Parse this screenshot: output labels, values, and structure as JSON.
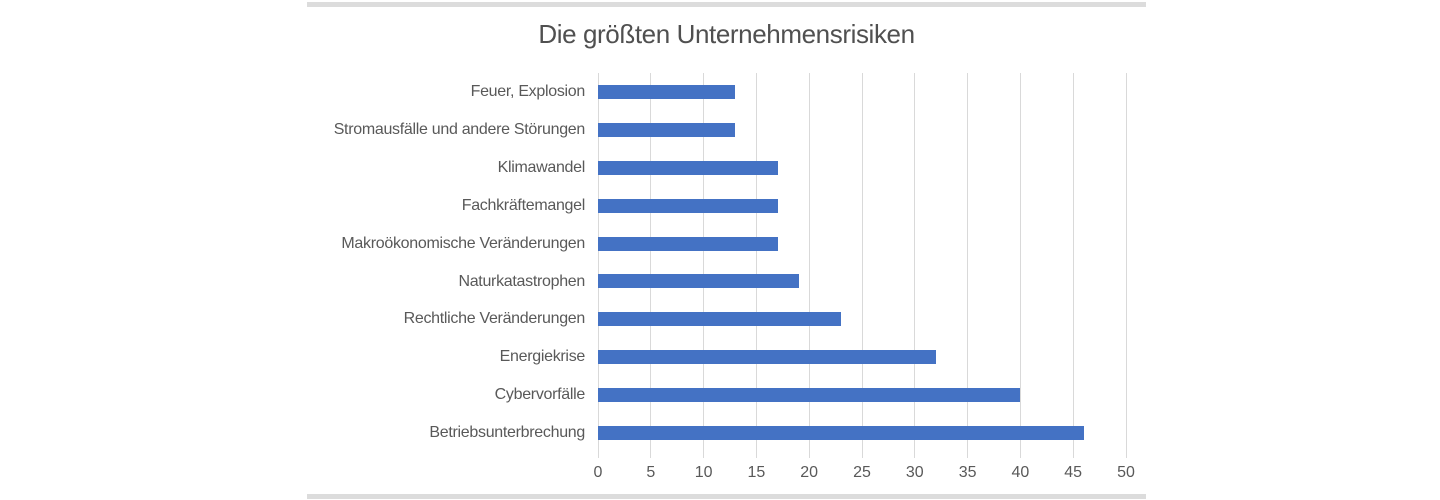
{
  "chart_data": {
    "type": "bar",
    "orientation": "horizontal",
    "title": "Die größten Unternehmensrisiken",
    "categories": [
      "Feuer, Explosion",
      "Stromausfälle und andere Störungen",
      "Klimawandel",
      "Fachkräftemangel",
      "Makroökonomische Veränderungen",
      "Naturkatastrophen",
      "Rechtliche Veränderungen",
      "Energiekrise",
      "Cybervorfälle",
      "Betriebsunterbrechung"
    ],
    "values": [
      13,
      13,
      17,
      17,
      17,
      19,
      23,
      32,
      40,
      46
    ],
    "xlabel": "",
    "ylabel": "",
    "xlim": [
      0,
      50
    ],
    "xticks": [
      0,
      5,
      10,
      15,
      20,
      25,
      30,
      35,
      40,
      45,
      50
    ],
    "grid": "vertical",
    "legend": "none",
    "colors": {
      "bar": "#4472c4",
      "gridline": "#d9d9d9",
      "axis_text": "#595959",
      "title_text": "#505050",
      "border_line": "#dcdcdc",
      "background": "#ffffff"
    }
  }
}
